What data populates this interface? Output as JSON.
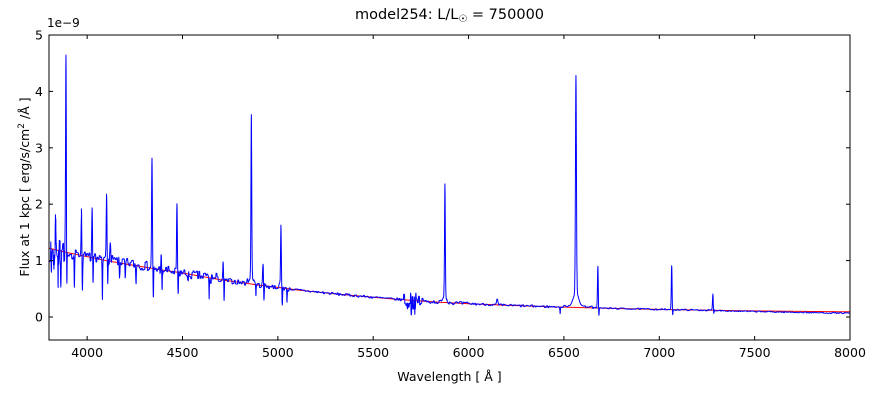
{
  "figure": {
    "title_prefix": "model254: L/L",
    "title_sub": "☉",
    "title_suffix": " = 750000",
    "offset_label": "1e−9",
    "xlabel": "Wavelength [ Å ]",
    "ylabel_prefix": "Flux at 1 kpc [ erg/s/cm",
    "ylabel_sup": "2",
    "ylabel_suffix": " /Å ]"
  },
  "chart_data": {
    "type": "line",
    "title": "model254: L/L☉ = 750000",
    "xlabel": "Wavelength [ Å ]",
    "ylabel": "Flux at 1 kpc [ erg/s/cm² /Å ]",
    "y_offset_factor": "1e−9",
    "grid": false,
    "legend": null,
    "xlim": [
      3800,
      8000
    ],
    "ylim_in_1e9": [
      -0.41,
      5.0
    ],
    "x_ticks": [
      4000,
      4500,
      5000,
      5500,
      6000,
      6500,
      7000,
      7500,
      8000
    ],
    "y_ticks": [
      0,
      1,
      2,
      3,
      4,
      5
    ],
    "series": [
      {
        "name": "observed-spectrum",
        "color": "#0000ff"
      },
      {
        "name": "continuum-fit",
        "color": "#ff0000"
      }
    ],
    "continuum_anchors": [
      [
        3800,
        1.22
      ],
      [
        3900,
        1.14
      ],
      [
        4000,
        1.07
      ],
      [
        4100,
        1.0
      ],
      [
        4200,
        0.94
      ],
      [
        4300,
        0.885
      ],
      [
        4400,
        0.83
      ],
      [
        4500,
        0.78
      ],
      [
        4600,
        0.72
      ],
      [
        4700,
        0.66
      ],
      [
        4800,
        0.615
      ],
      [
        4900,
        0.565
      ],
      [
        5000,
        0.525
      ],
      [
        5100,
        0.48
      ],
      [
        5200,
        0.445
      ],
      [
        5300,
        0.41
      ],
      [
        5400,
        0.38
      ],
      [
        5500,
        0.35
      ],
      [
        5600,
        0.32
      ],
      [
        5700,
        0.295
      ],
      [
        5800,
        0.272
      ],
      [
        5900,
        0.252
      ],
      [
        6000,
        0.235
      ],
      [
        6100,
        0.222
      ],
      [
        6200,
        0.208
      ],
      [
        6300,
        0.196
      ],
      [
        6400,
        0.185
      ],
      [
        6500,
        0.175
      ],
      [
        6600,
        0.166
      ],
      [
        6700,
        0.157
      ],
      [
        6800,
        0.149
      ],
      [
        6900,
        0.142
      ],
      [
        7000,
        0.135
      ],
      [
        7100,
        0.129
      ],
      [
        7200,
        0.123
      ],
      [
        7300,
        0.118
      ],
      [
        7400,
        0.113
      ],
      [
        7500,
        0.109
      ],
      [
        7600,
        0.105
      ],
      [
        7700,
        0.101
      ],
      [
        7800,
        0.098
      ],
      [
        7900,
        0.095
      ],
      [
        8000,
        0.092
      ]
    ],
    "spectrum_baseline_tail": [
      [
        7400,
        0.104
      ],
      [
        7500,
        0.097
      ],
      [
        7600,
        0.09
      ],
      [
        7700,
        0.084
      ],
      [
        7800,
        0.078
      ],
      [
        7900,
        0.072
      ],
      [
        8000,
        0.068
      ]
    ],
    "blue_above_red_regions": [
      {
        "from": 4030,
        "to": 4350,
        "delta": 0.025
      },
      {
        "from": 6500,
        "to": 6650,
        "delta": 0.02
      }
    ],
    "emission_lines": [
      {
        "wavelength": 3835,
        "peak": 1.75
      },
      {
        "wavelength": 3889,
        "peak": 4.57,
        "wing_amp": 0.08,
        "wing_sigma": 8
      },
      {
        "wavelength": 3970,
        "peak": 1.85
      },
      {
        "wavelength": 4026,
        "peak": 1.87
      },
      {
        "wavelength": 4102,
        "peak": 2.21
      },
      {
        "wavelength": 4121,
        "peak": 1.28
      },
      {
        "wavelength": 4340,
        "peak": 2.84
      },
      {
        "wavelength": 4388,
        "peak": 1.05
      },
      {
        "wavelength": 4471,
        "peak": 1.95
      },
      {
        "wavelength": 4713,
        "peak": 0.94
      },
      {
        "wavelength": 4861,
        "peak": 3.42,
        "wing_amp": 0.15,
        "wing_sigma": 12
      },
      {
        "wavelength": 4922,
        "peak": 0.94
      },
      {
        "wavelength": 5016,
        "peak": 1.53,
        "wing_amp": 0.06,
        "wing_sigma": 8
      },
      {
        "wavelength": 5876,
        "peak": 2.28,
        "wing_amp": 0.1,
        "wing_sigma": 10
      },
      {
        "wavelength": 6150,
        "peak": 0.31,
        "sigma": 3
      },
      {
        "wavelength": 6563,
        "peak": 4.02,
        "sigma": 2.5,
        "wing_amp": 0.25,
        "wing_sigma": 14
      },
      {
        "wavelength": 6678,
        "peak": 0.9
      },
      {
        "wavelength": 7065,
        "peak": 0.92
      },
      {
        "wavelength": 7281,
        "peak": 0.4
      }
    ],
    "absorption_features": [
      {
        "wavelength": 3812,
        "floor": 0.72
      },
      {
        "wavelength": 3826,
        "floor": 0.82
      },
      {
        "wavelength": 3848,
        "floor": 0.62
      },
      {
        "wavelength": 3862,
        "floor": 0.7
      },
      {
        "wavelength": 3893,
        "floor": 0.12
      },
      {
        "wavelength": 3933,
        "floor": 0.55
      },
      {
        "wavelength": 3975,
        "floor": 0.42
      },
      {
        "wavelength": 4031,
        "floor": 0.5
      },
      {
        "wavelength": 4080,
        "floor": 0.3
      },
      {
        "wavelength": 4108,
        "floor": 0.52
      },
      {
        "wavelength": 4170,
        "floor": 0.68
      },
      {
        "wavelength": 4200,
        "floor": 0.62
      },
      {
        "wavelength": 4256,
        "floor": 0.6
      },
      {
        "wavelength": 4347,
        "floor": 0.3
      },
      {
        "wavelength": 4393,
        "floor": 0.5
      },
      {
        "wavelength": 4477,
        "floor": 0.33
      },
      {
        "wavelength": 4530,
        "floor": 0.6
      },
      {
        "wavelength": 4640,
        "floor": 0.38
      },
      {
        "wavelength": 4718,
        "floor": 0.3
      },
      {
        "wavelength": 4885,
        "floor": 0.39
      },
      {
        "wavelength": 4927,
        "floor": 0.32
      },
      {
        "wavelength": 5023,
        "floor": 0.15
      },
      {
        "wavelength": 5048,
        "floor": 0.3
      },
      {
        "wavelength": 5680,
        "floor": 0.1
      },
      {
        "wavelength": 5700,
        "floor": 0.14
      },
      {
        "wavelength": 5720,
        "floor": 0.12
      },
      {
        "wavelength": 5885,
        "floor": 0.28
      },
      {
        "wavelength": 6480,
        "floor": 0.07
      },
      {
        "wavelength": 6683,
        "floor": 0.01
      },
      {
        "wavelength": 7070,
        "floor": 0.02
      },
      {
        "wavelength": 7285,
        "floor": 0.05
      }
    ],
    "noise_bands": [
      {
        "from": 3800,
        "to": 3880,
        "amplitude": 0.24
      },
      {
        "from": 3880,
        "to": 3925,
        "amplitude": 0.1
      },
      {
        "from": 3925,
        "to": 4600,
        "amplitude": 0.085
      },
      {
        "from": 4600,
        "to": 4680,
        "amplitude": 0.13
      },
      {
        "from": 4680,
        "to": 5060,
        "amplitude": 0.045
      },
      {
        "from": 5060,
        "to": 5650,
        "amplitude": 0.022
      },
      {
        "from": 5650,
        "to": 5760,
        "amplitude": 0.15
      },
      {
        "from": 5760,
        "to": 6000,
        "amplitude": 0.032
      },
      {
        "from": 6000,
        "to": 6420,
        "amplitude": 0.02
      },
      {
        "from": 6420,
        "to": 7300,
        "amplitude": 0.013
      },
      {
        "from": 7300,
        "to": 8000,
        "amplitude": 0.01
      }
    ]
  }
}
